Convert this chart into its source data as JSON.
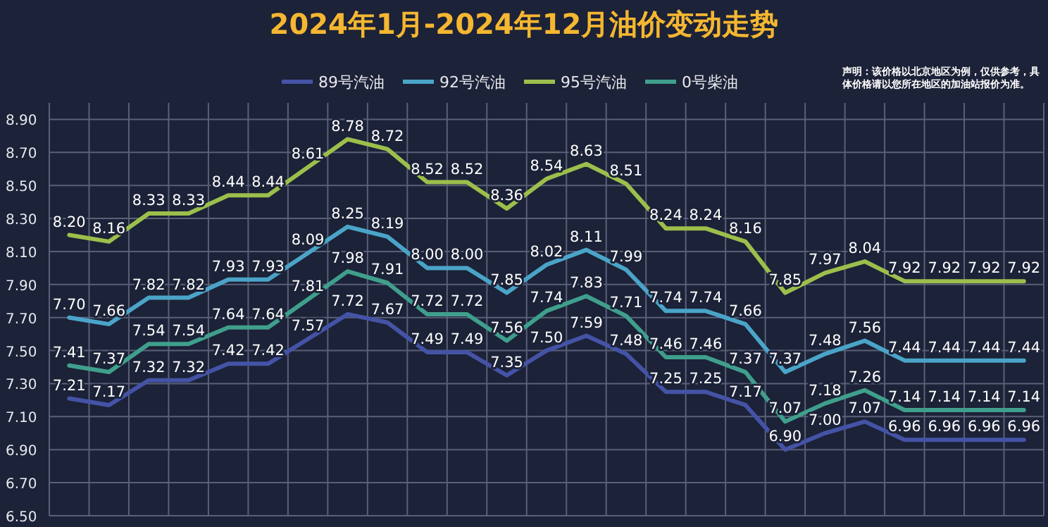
{
  "chart_data": {
    "type": "line",
    "title": "2024年1月-2024年12月油价变动走势",
    "annotations": [
      "声明：该价格以北京地区为例，仅供参考，具体价格请以您所在地区的加油站报价为准。"
    ],
    "categories": [
      null,
      null,
      null,
      null,
      null,
      null,
      null,
      null,
      null,
      null,
      null,
      null,
      null,
      null,
      null,
      null,
      null,
      null,
      null,
      null,
      null,
      null,
      null,
      null,
      null
    ],
    "series": [
      {
        "name": "89号汽油",
        "color": "#4453a6",
        "values": [
          7.21,
          7.17,
          7.32,
          7.32,
          7.42,
          7.42,
          7.57,
          7.72,
          7.67,
          7.49,
          7.49,
          7.35,
          7.5,
          7.59,
          7.48,
          7.25,
          7.25,
          7.17,
          6.9,
          7.0,
          7.07,
          6.96,
          6.96,
          6.96,
          6.96
        ],
        "value_labels": [
          "7.21",
          "7.17",
          "7.32",
          "7.32",
          "7.42",
          "7.42",
          "7.57",
          "7.72",
          "7.67",
          "7.49",
          "7.49",
          "7.35",
          "7.50",
          "7.59",
          "7.48",
          "7.25",
          "7.25",
          "7.17",
          "6.90",
          "7.00",
          "7.07",
          "6.96",
          "6.96",
          "6.96",
          "6.96"
        ]
      },
      {
        "name": "92号汽油",
        "color": "#4aa4c8",
        "values": [
          7.7,
          7.66,
          7.82,
          7.82,
          7.93,
          7.93,
          8.09,
          8.25,
          8.19,
          8.0,
          8.0,
          7.85,
          8.02,
          8.11,
          7.99,
          7.74,
          7.74,
          7.66,
          7.37,
          7.48,
          7.56,
          7.44,
          7.44,
          7.44,
          7.44
        ],
        "value_labels": [
          "7.70",
          "7.66",
          "7.82",
          "7.82",
          "7.93",
          "7.93",
          "8.09",
          "8.25",
          "8.19",
          "8.00",
          "8.00",
          "7.85",
          "8.02",
          "8.11",
          "7.99",
          "7.74",
          "7.74",
          "7.66",
          "7.37",
          "7.48",
          "7.56",
          "7.44",
          "7.44",
          "7.44",
          "7.44"
        ]
      },
      {
        "name": "95号汽油",
        "color": "#9cbf4c",
        "values": [
          8.2,
          8.16,
          8.33,
          8.33,
          8.44,
          8.44,
          8.61,
          8.78,
          8.72,
          8.52,
          8.52,
          8.36,
          8.54,
          8.63,
          8.51,
          8.24,
          8.24,
          8.16,
          7.85,
          7.97,
          8.04,
          7.92,
          7.92,
          7.92,
          7.92
        ],
        "value_labels": [
          "8.20",
          "8.16",
          "8.33",
          "8.33",
          "8.44",
          "8.44",
          "8.61",
          "8.78",
          "8.72",
          "8.52",
          "8.52",
          "8.36",
          "8.54",
          "8.63",
          "8.51",
          "8.24",
          "8.24",
          "8.16",
          "7.85",
          "7.97",
          "8.04",
          "7.92",
          "7.92",
          "7.92",
          "7.92"
        ]
      },
      {
        "name": "0号柴油",
        "color": "#3f9f8c",
        "values": [
          7.41,
          7.37,
          7.54,
          7.54,
          7.64,
          7.64,
          7.81,
          7.98,
          7.91,
          7.72,
          7.72,
          7.56,
          7.74,
          7.83,
          7.71,
          7.46,
          7.46,
          7.37,
          7.07,
          7.18,
          7.26,
          7.14,
          7.14,
          7.14,
          7.14
        ],
        "value_labels": [
          "7.41",
          "7.37",
          "7.54",
          "7.54",
          "7.64",
          "7.64",
          "7.81",
          "7.98",
          "7.91",
          "7.72",
          "7.72",
          "7.56",
          "7.74",
          "7.83",
          "7.71",
          "7.46",
          "7.46",
          "7.37",
          "7.07",
          "7.18",
          "7.26",
          "7.14",
          "7.14",
          "7.14",
          "7.14"
        ]
      }
    ],
    "ylim": [
      6.5,
      9.0
    ],
    "yticks": [
      {
        "value": 6.5,
        "label": "6.50"
      },
      {
        "value": 6.7,
        "label": "6.70"
      },
      {
        "value": 6.9,
        "label": "6.90"
      },
      {
        "value": 7.1,
        "label": "7.10"
      },
      {
        "value": 7.3,
        "label": "7.30"
      },
      {
        "value": 7.5,
        "label": "7.50"
      },
      {
        "value": 7.7,
        "label": "7.70"
      },
      {
        "value": 7.9,
        "label": "7.90"
      },
      {
        "value": 8.1,
        "label": "8.10"
      },
      {
        "value": 8.3,
        "label": "8.30"
      },
      {
        "value": 8.5,
        "label": "8.50"
      },
      {
        "value": 8.7,
        "label": "8.70"
      },
      {
        "value": 8.9,
        "label": "8.90"
      }
    ],
    "grid": true,
    "legend": "top"
  }
}
